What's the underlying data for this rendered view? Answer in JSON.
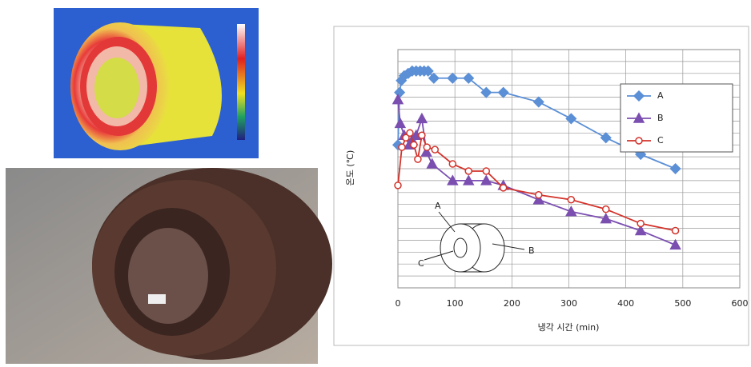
{
  "chart_data": {
    "type": "line",
    "y_label": "온도 (℃)",
    "x_label": "냉각 시간 (min)",
    "xlim": [
      0,
      600
    ],
    "xticks": [
      0,
      100,
      200,
      300,
      400,
      500,
      600
    ],
    "ylim": [
      0,
      100
    ],
    "grid": true,
    "legend": "upper right",
    "series": [
      {
        "name": "A",
        "color": "#5b8fd6",
        "marker": "diamond",
        "x": [
          0,
          3,
          6,
          11,
          18,
          25,
          32,
          39,
          46,
          53,
          63,
          96,
          124,
          155,
          185,
          247,
          304,
          365,
          426,
          487
        ],
        "values": [
          60,
          82,
          87,
          89,
          90,
          91,
          91,
          91,
          91,
          91,
          88,
          88,
          88,
          82,
          82,
          78,
          71,
          63,
          56,
          50
        ]
      },
      {
        "name": "B",
        "color": "#7b4fb0",
        "marker": "triangle",
        "x": [
          0,
          4,
          11,
          20,
          25,
          32,
          42,
          50,
          60,
          96,
          124,
          155,
          185,
          247,
          304,
          365,
          426,
          487
        ],
        "values": [
          79,
          69,
          64,
          60,
          62,
          64,
          71,
          57,
          52,
          45,
          45,
          45,
          43,
          37,
          32,
          29,
          24,
          18
        ]
      },
      {
        "name": "C",
        "color": "#d2332b",
        "marker": "circle",
        "x": [
          0,
          7,
          14,
          21,
          28,
          35,
          42,
          51,
          65,
          96,
          124,
          155,
          185,
          247,
          304,
          365,
          426,
          487
        ],
        "values": [
          43,
          59,
          63,
          65,
          60,
          54,
          64,
          59,
          58,
          52,
          49,
          49,
          42,
          39,
          37,
          33,
          27,
          24
        ]
      }
    ],
    "annotations": [
      "A",
      "B",
      "C"
    ]
  }
}
